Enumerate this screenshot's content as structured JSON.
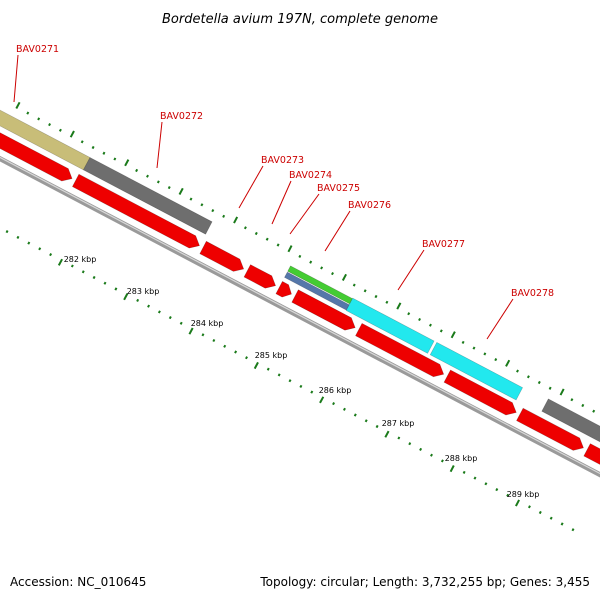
{
  "title": "Bordetella avium 197N, complete genome",
  "accession_text": "Accession: NC_010645",
  "topology_text": "Topology: circular; Length: 3,732,255 bp; Genes: 3,455",
  "ruler_labels": [
    "282 kbp",
    "283 kbp",
    "284 kbp",
    "285 kbp",
    "286 kbp",
    "287 kbp",
    "288 kbp",
    "289 kbp"
  ],
  "genes": [
    {
      "label": "BAV0271",
      "track": "cds",
      "colour": "#c8bd78"
    },
    {
      "label": "BAV0272",
      "track": "cds",
      "colour": "#6e6e6e"
    },
    {
      "label": "BAV0273",
      "track": "orf",
      "colour": "#ee0000"
    },
    {
      "label": "BAV0274",
      "track": "orf",
      "colour": "#ee0000"
    },
    {
      "label": "BAV0275",
      "track": "cds",
      "colour": "#44cc33"
    },
    {
      "label": "BAV0276",
      "track": "cds",
      "colour": "#5577aa"
    },
    {
      "label": "BAV0277",
      "track": "cds",
      "colour": "#22e8ee"
    },
    {
      "label": "BAV0278",
      "track": "cds",
      "colour": "#22e8ee"
    }
  ],
  "colors": {
    "orf": "#ee0000",
    "tick": "#1a7a1a",
    "backbone": "#888888",
    "label": "#cc0000"
  }
}
